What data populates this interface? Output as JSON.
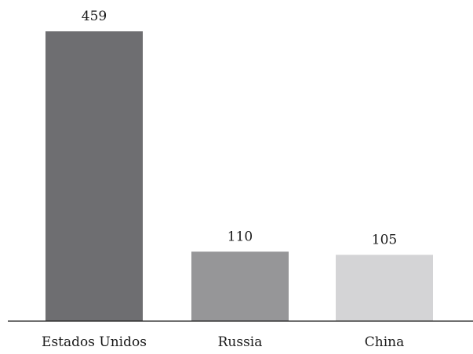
{
  "chart_data": {
    "type": "bar",
    "title": "",
    "xlabel": "",
    "ylabel": "",
    "categories": [
      "Estados Unidos",
      "Russia",
      "China"
    ],
    "values": [
      459,
      110,
      105
    ],
    "value_labels": [
      "459",
      "110",
      "105"
    ],
    "colors": [
      "#6e6e71",
      "#969698",
      "#d4d4d6"
    ],
    "ylim": [
      0,
      459
    ],
    "grid": false,
    "legend": "none"
  }
}
